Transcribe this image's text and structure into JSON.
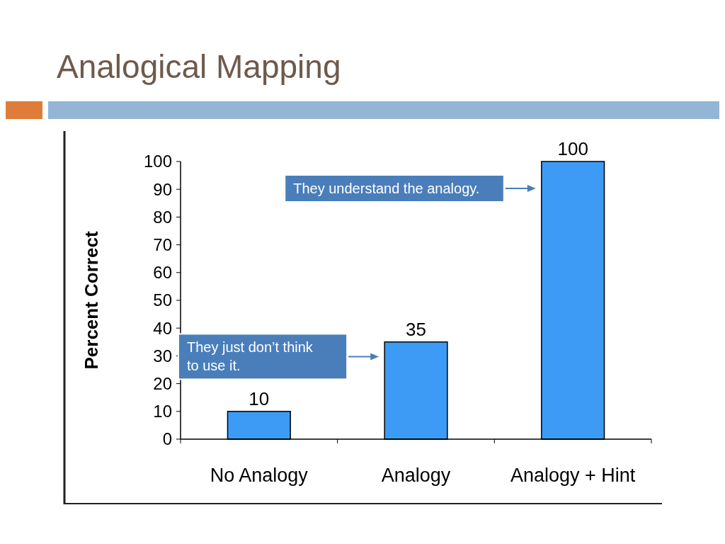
{
  "chart_data": {
    "type": "bar",
    "title": "Analogical Mapping",
    "ylabel": "Percent Correct",
    "categories": [
      "No Analogy",
      "Analogy",
      "Analogy + Hint"
    ],
    "values": [
      10,
      35,
      100
    ],
    "color": "#3d9bf5",
    "ylim": [
      0,
      100
    ],
    "yticks": [
      0,
      10,
      20,
      30,
      40,
      50,
      60,
      70,
      80,
      90,
      100
    ],
    "grid": false,
    "data_labels": true,
    "annotations": [
      "They understand the analogy.",
      "They just don’t think to use it."
    ]
  }
}
